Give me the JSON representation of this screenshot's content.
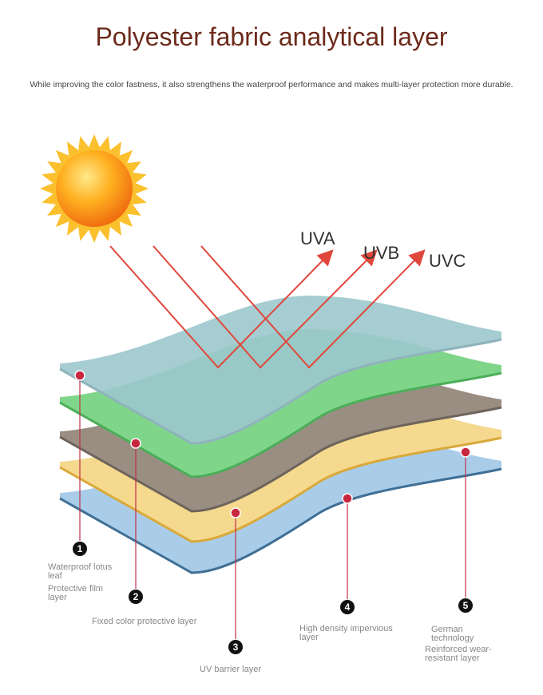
{
  "title": "Polyester fabric analytical layer",
  "subtitle": "While improving the color fastness, it also strengthens the waterproof performance and makes multi-layer protection more durable.",
  "rays": [
    "UVA",
    "UVB",
    "UVC"
  ],
  "layers": [
    {
      "number": "1",
      "labels": [
        "Waterproof lotus leaf",
        "Protective film layer"
      ]
    },
    {
      "number": "2",
      "labels": [
        "Fixed color protective layer"
      ]
    },
    {
      "number": "3",
      "labels": [
        "UV barrier layer"
      ]
    },
    {
      "number": "4",
      "labels": [
        "High density impervious layer"
      ]
    },
    {
      "number": "5",
      "labels": [
        "German technology",
        "Reinforced wear-resistant layer"
      ]
    }
  ]
}
